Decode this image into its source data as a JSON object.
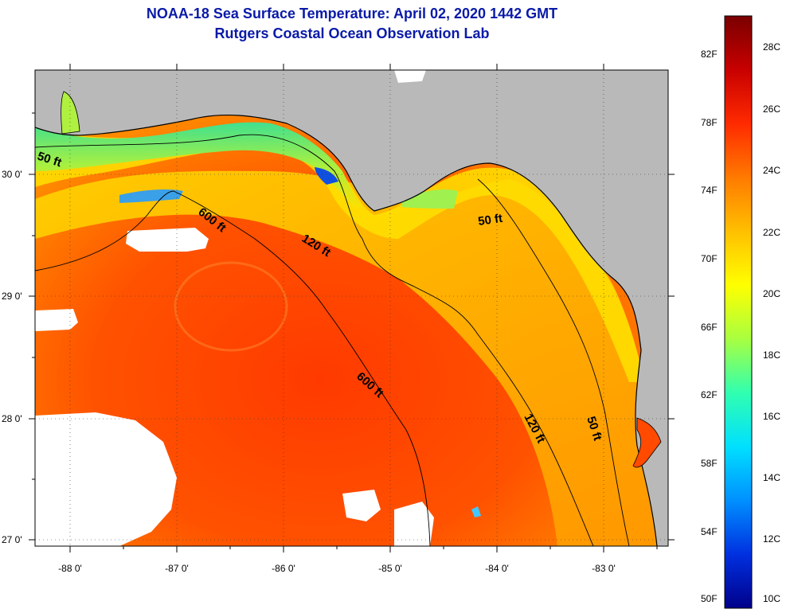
{
  "title": {
    "line1": "NOAA-18 Sea Surface Temperature:  April 02, 2020 1442 GMT",
    "line2": "Rutgers Coastal Ocean Observation Lab"
  },
  "axes": {
    "lon_ticks": [
      "-88 0'",
      "-87 0'",
      "-86 0'",
      "-85 0'",
      "-84 0'",
      "-83 0'"
    ],
    "lat_ticks": [
      "30 0'",
      "29 0'",
      "28 0'",
      "27 0'"
    ]
  },
  "contours": {
    "c50_west": "50 ft",
    "c600_north": "600 ft",
    "c120_north": "120 ft",
    "c50_east": "50 ft",
    "c600_south": "600 ft",
    "c120_east": "120 ft",
    "c50_south": "50 ft"
  },
  "colorbar": {
    "fahrenheit": [
      "82F",
      "78F",
      "74F",
      "70F",
      "66F",
      "62F",
      "58F",
      "54F",
      "50F"
    ],
    "celsius": [
      "28C",
      "26C",
      "24C",
      "22C",
      "20C",
      "18C",
      "16C",
      "14C",
      "12C",
      "10C"
    ],
    "colors": [
      "#7a0000",
      "#c80000",
      "#ff2a00",
      "#ff7a00",
      "#ffbf00",
      "#ffff00",
      "#a8ff40",
      "#30ffb0",
      "#00e0ff",
      "#0090ff",
      "#0030e0",
      "#00008a"
    ]
  }
}
